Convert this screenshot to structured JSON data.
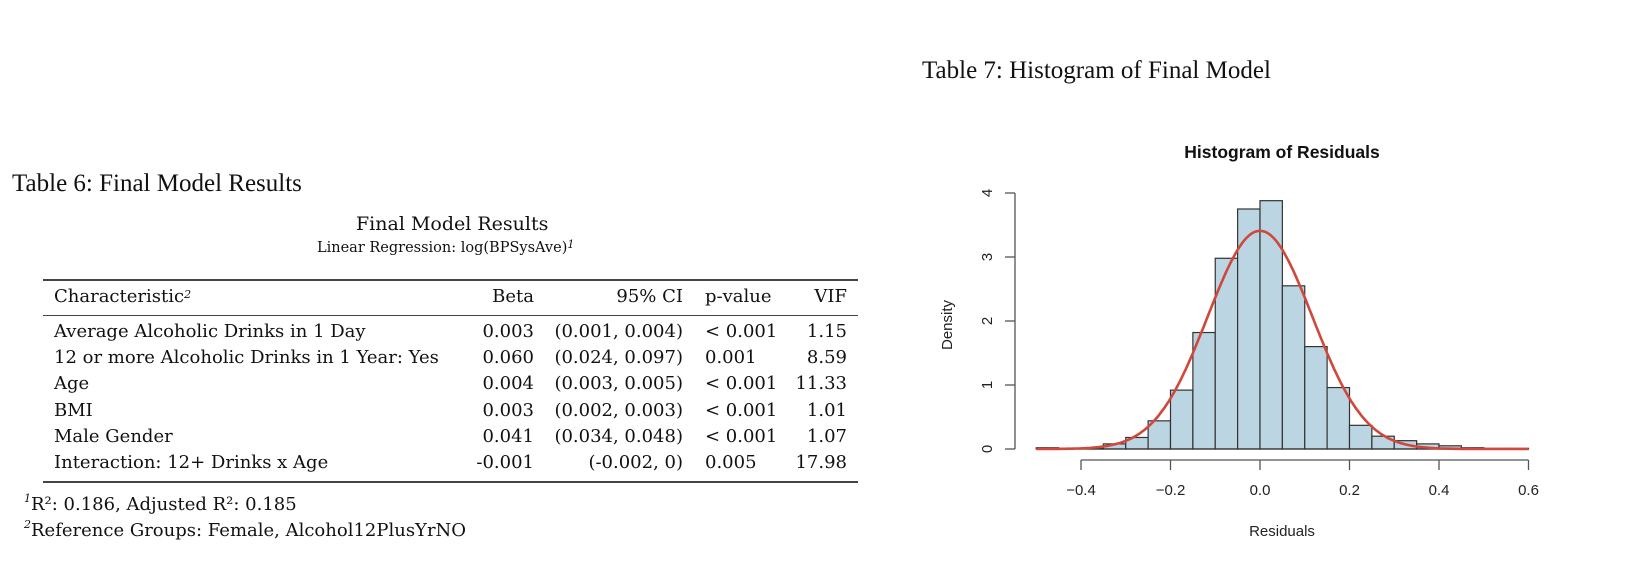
{
  "left": {
    "caption": "Table 6: Final Model Results",
    "table_title": "Final Model Results",
    "table_subtitle": "Linear Regression: log(BPSysAve)",
    "table_subtitle_fn": "1",
    "columns": {
      "characteristic": "Characteristic",
      "characteristic_fn": "2",
      "beta": "Beta",
      "ci": "95% CI",
      "pvalue": "p-value",
      "vif": "VIF"
    },
    "rows": [
      {
        "characteristic": "Average Alcoholic Drinks in 1 Day",
        "beta": "0.003",
        "ci": "(0.001, 0.004)",
        "pvalue": "< 0.001",
        "vif": "1.15"
      },
      {
        "characteristic": "12 or more Alcoholic Drinks in 1 Year: Yes",
        "beta": "0.060",
        "ci": "(0.024, 0.097)",
        "pvalue": "0.001",
        "vif": "8.59"
      },
      {
        "characteristic": "Age",
        "beta": "0.004",
        "ci": "(0.003, 0.005)",
        "pvalue": "< 0.001",
        "vif": "11.33"
      },
      {
        "characteristic": "BMI",
        "beta": "0.003",
        "ci": "(0.002, 0.003)",
        "pvalue": "< 0.001",
        "vif": "1.01"
      },
      {
        "characteristic": "Male Gender",
        "beta": "0.041",
        "ci": "(0.034, 0.048)",
        "pvalue": "< 0.001",
        "vif": "1.07"
      },
      {
        "characteristic": "Interaction: 12+ Drinks x Age",
        "beta": "-0.001",
        "ci": "(-0.002, 0)",
        "pvalue": "0.005",
        "vif": "17.98"
      }
    ],
    "footnotes": [
      {
        "mark": "1",
        "text": "R²: 0.186, Adjusted R²: 0.185"
      },
      {
        "mark": "2",
        "text": "Reference Groups: Female, Alcohol12PlusYrNO"
      }
    ]
  },
  "right": {
    "caption": "Table 7: Histogram of Final Model"
  },
  "chart_data": {
    "type": "bar",
    "title": "Histogram of Residuals",
    "xlabel": "Residuals",
    "ylabel": "Density",
    "xlim": [
      -0.5,
      0.6
    ],
    "ylim": [
      0,
      4
    ],
    "xticks": [
      "-0.4",
      "-0.2",
      "0.0",
      "0.2",
      "0.4",
      "0.6"
    ],
    "yticks": [
      "0",
      "1",
      "2",
      "3",
      "4"
    ],
    "bin_width": 0.05,
    "bin_starts": [
      -0.5,
      -0.45,
      -0.4,
      -0.35,
      -0.3,
      -0.25,
      -0.2,
      -0.15,
      -0.1,
      -0.05,
      0.0,
      0.05,
      0.1,
      0.15,
      0.2,
      0.25,
      0.3,
      0.35,
      0.4,
      0.45,
      0.5,
      0.55
    ],
    "values": [
      0.02,
      0.0,
      0.01,
      0.08,
      0.18,
      0.44,
      0.92,
      1.82,
      2.98,
      3.75,
      3.88,
      2.55,
      1.6,
      0.96,
      0.37,
      0.2,
      0.13,
      0.08,
      0.05,
      0.02,
      0.01,
      0.01
    ],
    "overlay": {
      "type": "normal_density",
      "mean": 0.0,
      "sd": 0.117,
      "peak": 3.41,
      "color": "#d0483a"
    },
    "bar_fill": "#bcd5e3",
    "bar_edge": "#333333",
    "grid": false,
    "legend": null
  }
}
